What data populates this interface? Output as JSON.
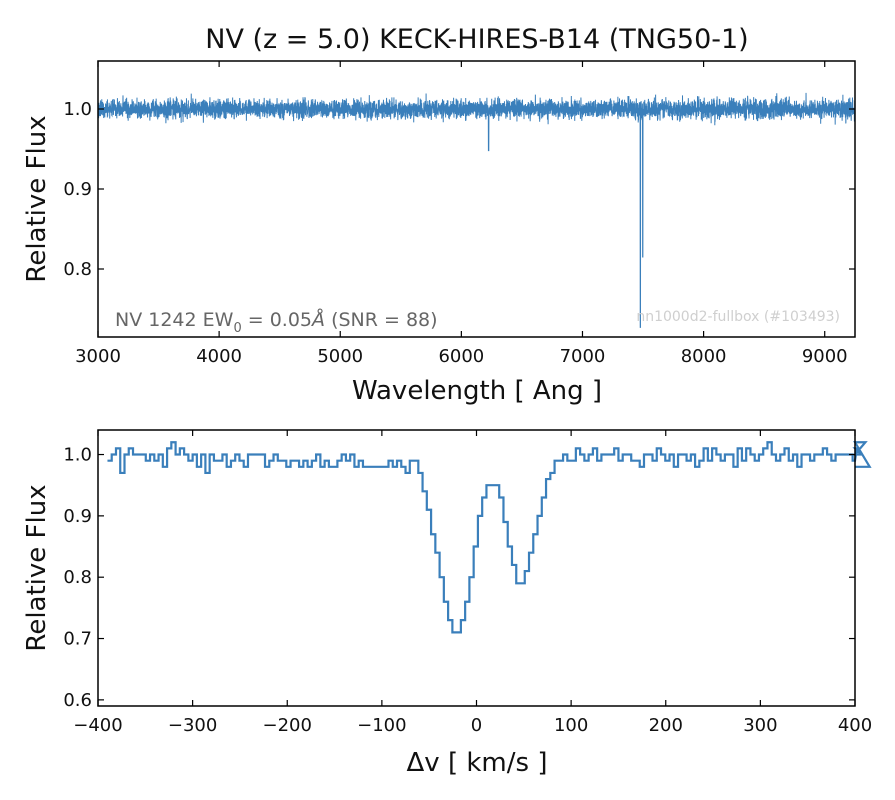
{
  "chart_data": [
    {
      "type": "line",
      "title": "NV (z = 5.0) KECK-HIRES-B14 (TNG50-1)",
      "xlabel": "Wavelength [ Ang ]",
      "ylabel": "Relative Flux",
      "xlim": [
        3000,
        9250
      ],
      "ylim": [
        0.715,
        1.06
      ],
      "xticks": [
        3000,
        4000,
        5000,
        6000,
        7000,
        8000,
        9000
      ],
      "xtick_labels": [
        "3000",
        "4000",
        "5000",
        "6000",
        "7000",
        "8000",
        "9000"
      ],
      "yticks": [
        0.8,
        0.9,
        1.0
      ],
      "ytick_labels": [
        "0.8",
        "0.9",
        "1.0"
      ],
      "continuum": 1.0,
      "noise_sigma": 0.012,
      "features": [
        {
          "x": 6225,
          "y": 0.948
        },
        {
          "x": 7478,
          "y": 0.727
        },
        {
          "x": 7498,
          "y": 0.815
        }
      ],
      "annotation": {
        "label": "NV 1242 EW",
        "subscript": "0",
        "value": " = 0.05",
        "unit": "Å",
        "snr": " (SNR = 88)"
      },
      "watermark": "nn1000d2-fullbox (#103493)",
      "color": "#3a7fbb"
    },
    {
      "type": "line",
      "step": true,
      "xlabel": "Δv [ km/s ]",
      "ylabel": "Relative Flux",
      "xlim": [
        -400,
        400
      ],
      "ylim": [
        0.59,
        1.04
      ],
      "xticks": [
        -400,
        -300,
        -200,
        -100,
        0,
        100,
        200,
        300,
        400
      ],
      "xtick_labels": [
        "−400",
        "−300",
        "−200",
        "−100",
        "0",
        "100",
        "200",
        "300",
        "400"
      ],
      "yticks": [
        0.6,
        0.7,
        0.8,
        0.9,
        1.0
      ],
      "ytick_labels": [
        "0.6",
        "0.7",
        "0.8",
        "0.9",
        "1.0"
      ],
      "x_start": -390,
      "x_step": 4.5,
      "values": [
        0.99,
        1.0,
        1.01,
        0.97,
        1.0,
        1.01,
        1.0,
        1.0,
        1.0,
        0.99,
        1.0,
        0.99,
        1.0,
        0.98,
        1.01,
        1.02,
        1.0,
        1.01,
        1.0,
        0.99,
        1.0,
        0.98,
        1.0,
        0.97,
        1.0,
        0.99,
        0.99,
        1.0,
        0.98,
        0.99,
        1.0,
        0.99,
        0.98,
        1.0,
        1.0,
        1.0,
        1.0,
        0.98,
        0.99,
        1.0,
        0.99,
        0.99,
        0.98,
        0.99,
        0.99,
        0.98,
        0.99,
        0.98,
        0.99,
        1.0,
        0.98,
        0.99,
        0.98,
        0.98,
        0.99,
        1.0,
        0.99,
        1.0,
        0.98,
        0.99,
        0.98,
        0.98,
        0.98,
        0.98,
        0.98,
        0.98,
        0.99,
        0.98,
        0.99,
        0.98,
        0.97,
        0.99,
        0.99,
        0.97,
        0.94,
        0.91,
        0.87,
        0.84,
        0.8,
        0.76,
        0.73,
        0.71,
        0.71,
        0.73,
        0.76,
        0.8,
        0.85,
        0.9,
        0.93,
        0.95,
        0.95,
        0.95,
        0.93,
        0.89,
        0.85,
        0.82,
        0.79,
        0.79,
        0.81,
        0.84,
        0.87,
        0.9,
        0.93,
        0.96,
        0.97,
        0.99,
        0.99,
        1.0,
        0.99,
        0.99,
        1.01,
        1.0,
        0.99,
        1.0,
        1.01,
        0.99,
        1.0,
        1.0,
        1.0,
        1.01,
        0.99,
        1.0,
        1.0,
        0.99,
        0.99,
        0.98,
        1.0,
        1.0,
        0.99,
        1.01,
        1.0,
        0.99,
        1.0,
        0.98,
        1.0,
        1.0,
        0.99,
        1.0,
        0.98,
        0.99,
        1.01,
        0.99,
        1.01,
        1.0,
        0.99,
        1.0,
        1.0,
        0.98,
        1.01,
        0.99,
        1.01,
        1.0,
        0.99,
        1.0,
        1.01,
        1.02,
        1.0,
        0.99,
        1.0,
        1.01,
        0.99,
        1.0,
        0.98,
        1.0,
        1.0,
        0.99,
        1.0,
        1.0,
        1.01,
        1.0,
        0.99,
        1.0,
        1.0,
        1.0,
        1.0,
        0.99,
        1.01,
        1.0,
        1.02,
        0.98
      ],
      "color": "#3a7fbb"
    }
  ]
}
